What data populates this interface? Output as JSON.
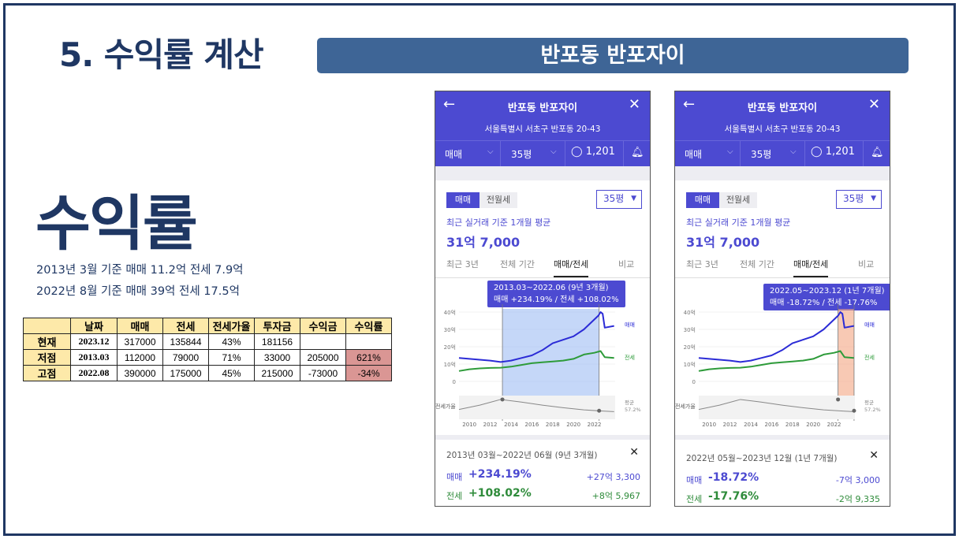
{
  "slide": {
    "title": "5. 수익률 계산",
    "banner": "반포동 반포자이",
    "big_label": "수익률",
    "line1": "2013년 3월 기준 매매 11.2억 전세 7.9억",
    "line2": "2022년 8월 기준 매매 39억 전세 17.5억"
  },
  "table": {
    "headers": [
      "",
      "날짜",
      "매매",
      "전세",
      "전세가율",
      "투자금",
      "수익금",
      "수익률"
    ],
    "rows": [
      [
        "현재",
        "2023.12",
        "317000",
        "135844",
        "43%",
        "181156",
        "",
        ""
      ],
      [
        "저점",
        "2013.03",
        "112000",
        "79000",
        "71%",
        "33000",
        "205000",
        "621%"
      ],
      [
        "고점",
        "2022.08",
        "390000",
        "175000",
        "45%",
        "215000",
        "-73000",
        "-34%"
      ]
    ],
    "highlight_color": "#da9694",
    "header_color": "#fde9a9"
  },
  "phones": [
    {
      "back": "←",
      "close": "✕",
      "name": "반포동 반포자이",
      "address": "서울특별시 서초구 반포동 20-43",
      "type_select": "매매",
      "size_select": "35평",
      "comments": "1,201",
      "tabs": [
        "매매",
        "전월세"
      ],
      "pyeong": "35평",
      "avg_label": "최근 실거래 기준 1개월 평균",
      "avg_value": "31억 7,000",
      "period_tabs": [
        "최근 3년",
        "전체 기간",
        "매매/전세",
        "비교"
      ],
      "tooltip_line1": "2013.03~2022.06 (9년 3개월)",
      "tooltip_line2": "매매 +234.19%  /  전세 +108.02%",
      "summary_range": "2013년 03월~2022년 06월 (9년 3개월)",
      "sale_label": "매매",
      "sale_pct": "+234.19%",
      "sale_amt": "+27억 3,300",
      "jeonse_label": "전세",
      "jeonse_pct": "+108.02%",
      "jeonse_amt": "+8억 5,967",
      "highlight": "#9fbcf3",
      "chart_data": {
        "type": "line",
        "x_ticks": [
          "2010",
          "2012",
          "2014",
          "2016",
          "2018",
          "2020",
          "2022"
        ],
        "y_ticks": [
          "40억",
          "30억",
          "20억",
          "10억",
          "0"
        ],
        "series": [
          {
            "name": "매매",
            "x": [
              2009,
              2010,
              2011,
              2012,
              2013,
              2014,
              2015,
              2016,
              2017,
              2018,
              2019,
              2020,
              2021,
              2022.4,
              2022.6,
              2022.8,
              2023,
              2023.9
            ],
            "y": [
              13.5,
              13,
              12.5,
              12,
              11.2,
              12,
              13.5,
              15,
              18,
              22,
              24,
              26,
              30,
              38,
              40,
              39,
              31,
              32
            ]
          },
          {
            "name": "전세",
            "x": [
              2009,
              2010,
              2011,
              2012,
              2013,
              2014,
              2015,
              2016,
              2017,
              2018,
              2019,
              2020,
              2021,
              2022,
              2022.6,
              2023,
              2023.9
            ],
            "y": [
              6,
              7,
              7.5,
              7.8,
              7.9,
              8.5,
              9.5,
              10.5,
              11,
              11.5,
              12,
              13,
              15.5,
              16.5,
              17.5,
              14,
              13.5
            ]
          },
          {
            "name": "전세가율",
            "x": [
              2009,
              2011,
              2013,
              2015,
              2017,
              2019,
              2021,
              2023,
              2023.9
            ],
            "y": [
              48,
              58,
              71,
              65,
              58,
              52,
              47,
              44,
              43
            ]
          }
        ],
        "right_labels": [
          "매매",
          "전세",
          "평균",
          "57.2%"
        ],
        "left_label": "전세가율",
        "range": [
          2013.17,
          2022.46
        ]
      }
    },
    {
      "back": "←",
      "close": "✕",
      "name": "반포동 반포자이",
      "address": "서울특별시 서초구 반포동 20-43",
      "type_select": "매매",
      "size_select": "35평",
      "comments": "1,201",
      "tabs": [
        "매매",
        "전월세"
      ],
      "pyeong": "35평",
      "avg_label": "최근 실거래 기준 1개월 평균",
      "avg_value": "31억 7,000",
      "period_tabs": [
        "최근 3년",
        "전체 기간",
        "매매/전세",
        "비교"
      ],
      "tooltip_line1": "2022.05~2023.12 (1년 7개월)",
      "tooltip_line2": "매매 -18.72%  /  전세 -17.76%",
      "summary_range": "2022년 05월~2023년 12월 (1년 7개월)",
      "sale_label": "매매",
      "sale_pct": "-18.72%",
      "sale_amt": "-7억 3,000",
      "jeonse_label": "전세",
      "jeonse_pct": "-17.76%",
      "jeonse_amt": "-2억 9,335",
      "highlight": "#f4a582",
      "chart_data": {
        "type": "line",
        "x_ticks": [
          "2010",
          "2012",
          "2014",
          "2016",
          "2018",
          "2020",
          "2022"
        ],
        "y_ticks": [
          "40억",
          "30억",
          "20억",
          "10억",
          "0"
        ],
        "series": [
          {
            "name": "매매",
            "x": [
              2009,
              2010,
              2011,
              2012,
              2013,
              2014,
              2015,
              2016,
              2017,
              2018,
              2019,
              2020,
              2021,
              2022.4,
              2022.6,
              2022.8,
              2023,
              2023.9
            ],
            "y": [
              13.5,
              13,
              12.5,
              12,
              11.2,
              12,
              13.5,
              15,
              18,
              22,
              24,
              26,
              30,
              38,
              40,
              39,
              31,
              32
            ]
          },
          {
            "name": "전세",
            "x": [
              2009,
              2010,
              2011,
              2012,
              2013,
              2014,
              2015,
              2016,
              2017,
              2018,
              2019,
              2020,
              2021,
              2022,
              2022.6,
              2023,
              2023.9
            ],
            "y": [
              6,
              7,
              7.5,
              7.8,
              7.9,
              8.5,
              9.5,
              10.5,
              11,
              11.5,
              12,
              13,
              15.5,
              16.5,
              17.5,
              14,
              13.5
            ]
          },
          {
            "name": "전세가율",
            "x": [
              2009,
              2011,
              2013,
              2015,
              2017,
              2019,
              2021,
              2023,
              2023.9
            ],
            "y": [
              48,
              58,
              71,
              65,
              58,
              52,
              47,
              44,
              43
            ]
          }
        ],
        "right_labels": [
          "매매",
          "전세",
          "평균",
          "57.2%"
        ],
        "left_label": "전세가율",
        "range": [
          2022.38,
          2023.92
        ]
      }
    }
  ]
}
